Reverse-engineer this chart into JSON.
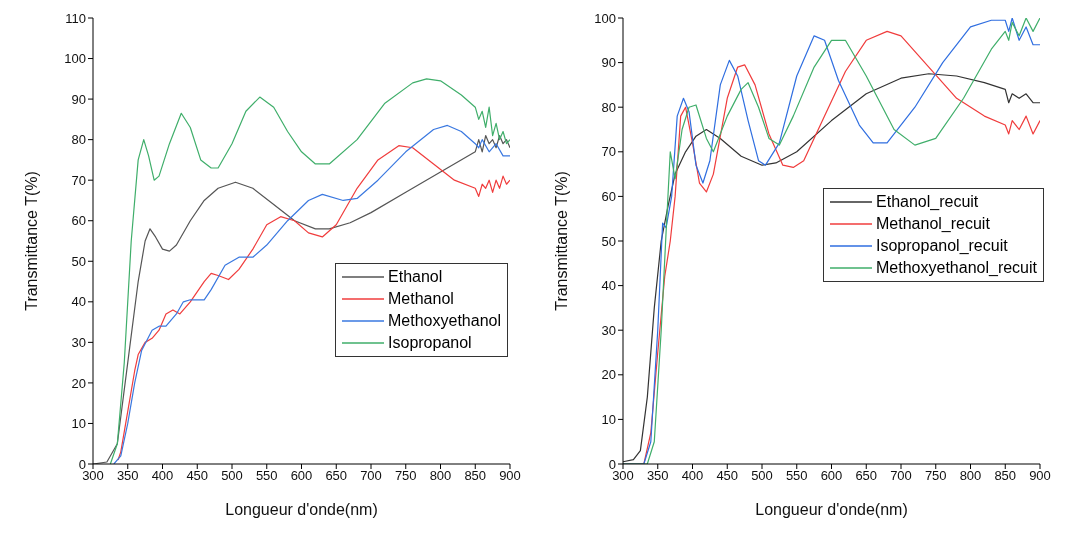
{
  "chart_data": [
    {
      "type": "line",
      "xlabel": "Longueur d'onde(nm)",
      "ylabel": "Transmittance T(%)",
      "xlim": [
        300,
        900
      ],
      "xticks": [
        300,
        350,
        400,
        450,
        500,
        550,
        600,
        650,
        700,
        750,
        800,
        850,
        900
      ],
      "ylim": [
        0,
        110
      ],
      "yticks": [
        0,
        10,
        20,
        30,
        40,
        50,
        60,
        70,
        80,
        90,
        100,
        110
      ],
      "grid": false,
      "legend": "bottom right",
      "marker": "none",
      "line_style": "solid",
      "series": [
        {
          "name": "Ethanol",
          "color": "#555555",
          "x": [
            300,
            320,
            335,
            350,
            365,
            375,
            382,
            390,
            400,
            410,
            420,
            440,
            460,
            480,
            505,
            530,
            560,
            590,
            620,
            640,
            670,
            700,
            750,
            800,
            850,
            855,
            860,
            865,
            870,
            875,
            880,
            885,
            890,
            895,
            900
          ],
          "values": [
            0,
            0.5,
            5,
            25,
            45,
            55,
            58,
            56,
            53,
            52.5,
            54,
            60,
            65,
            68,
            69.5,
            68,
            64,
            60,
            58,
            58,
            59.5,
            62,
            67,
            72,
            77,
            80,
            77,
            81,
            79,
            80,
            78,
            81,
            79,
            80,
            78
          ]
        },
        {
          "name": "Methanol",
          "color": "#f03c3c",
          "x": [
            336,
            340,
            350,
            360,
            365,
            375,
            385,
            395,
            405,
            415,
            425,
            440,
            460,
            470,
            480,
            495,
            510,
            530,
            550,
            570,
            590,
            610,
            630,
            650,
            680,
            710,
            740,
            760,
            790,
            820,
            850,
            855,
            860,
            865,
            870,
            875,
            880,
            885,
            890,
            895,
            900
          ],
          "values": [
            1,
            3,
            13,
            23,
            27,
            30,
            31,
            33,
            37,
            38,
            37,
            40,
            45,
            47,
            46.5,
            45.5,
            48,
            53,
            59,
            61,
            60,
            57,
            56,
            59,
            68,
            75,
            78.5,
            78,
            74,
            70,
            68,
            66,
            69,
            68,
            70,
            67,
            70,
            68,
            71,
            69,
            70
          ]
        },
        {
          "name": "Methoxyethanol",
          "color": "#3a78e0",
          "x": [
            330,
            340,
            350,
            360,
            370,
            385,
            395,
            405,
            420,
            430,
            440,
            460,
            470,
            490,
            510,
            530,
            550,
            580,
            610,
            630,
            660,
            680,
            710,
            750,
            790,
            810,
            830,
            850,
            855,
            860,
            870,
            880,
            890,
            900
          ],
          "values": [
            0,
            2,
            10,
            20,
            28,
            33,
            34,
            34,
            37,
            40,
            40.5,
            40.5,
            43,
            49,
            51,
            51,
            54,
            60,
            65,
            66.5,
            65,
            65.5,
            70,
            77,
            82.5,
            83.5,
            82,
            79,
            78,
            80,
            77,
            79,
            76,
            76
          ]
        },
        {
          "name": "Isopropanol",
          "color": "#3fae6a",
          "x": [
            325,
            335,
            345,
            355,
            365,
            373,
            380,
            388,
            395,
            410,
            427,
            440,
            455,
            470,
            480,
            500,
            520,
            540,
            560,
            580,
            600,
            620,
            640,
            680,
            720,
            760,
            780,
            800,
            830,
            850,
            855,
            860,
            865,
            870,
            875,
            880,
            885,
            890,
            895,
            900
          ],
          "values": [
            0,
            5,
            25,
            55,
            75,
            80,
            76,
            70,
            71,
            79,
            86.5,
            83,
            75,
            73,
            73,
            79,
            87,
            90.5,
            88,
            82,
            77,
            74,
            74,
            80,
            89,
            94,
            95,
            94.5,
            91,
            88,
            85,
            87,
            83,
            88,
            81,
            84,
            80,
            82,
            79,
            80
          ]
        }
      ]
    },
    {
      "type": "line",
      "xlabel": "Longueur d'onde(nm)",
      "ylabel": "Transmittance T(%)",
      "xlim": [
        300,
        900
      ],
      "xticks": [
        300,
        350,
        400,
        450,
        500,
        550,
        600,
        650,
        700,
        750,
        800,
        850,
        900
      ],
      "ylim": [
        0,
        100
      ],
      "yticks": [
        0,
        10,
        20,
        30,
        40,
        50,
        60,
        70,
        80,
        90,
        100
      ],
      "grid": false,
      "legend": "right",
      "marker": "none",
      "line_style": "solid",
      "series": [
        {
          "name": "Ethanol_recuit",
          "color": "#333333",
          "x": [
            300,
            315,
            325,
            335,
            345,
            355,
            365,
            375,
            390,
            405,
            420,
            440,
            470,
            500,
            520,
            550,
            600,
            650,
            700,
            740,
            780,
            820,
            850,
            855,
            860,
            870,
            880,
            890,
            900
          ],
          "values": [
            0.5,
            1,
            3,
            15,
            35,
            50,
            58,
            65,
            70,
            73.5,
            75,
            73,
            69,
            67,
            67.5,
            70,
            77,
            83,
            86.5,
            87.5,
            87,
            85.5,
            84,
            81,
            83,
            82,
            83,
            81,
            81
          ]
        },
        {
          "name": "Methanol_recuit",
          "color": "#f03c3c",
          "x": [
            300,
            330,
            340,
            350,
            360,
            368,
            375,
            383,
            390,
            400,
            410,
            420,
            430,
            450,
            465,
            475,
            490,
            510,
            530,
            545,
            560,
            590,
            620,
            650,
            680,
            700,
            740,
            780,
            820,
            850,
            855,
            860,
            870,
            880,
            890,
            900
          ],
          "values": [
            0,
            0,
            7,
            25,
            42,
            50,
            60,
            78,
            80,
            72,
            63,
            61,
            65,
            82,
            89,
            89.5,
            85,
            74,
            67,
            66.5,
            68,
            78,
            88,
            95,
            97,
            96,
            89,
            82,
            78,
            76,
            74,
            77,
            75,
            78,
            74,
            77
          ]
        },
        {
          "name": "Isopropanol_recuit",
          "color": "#2f6ee0",
          "x": [
            300,
            330,
            340,
            350,
            357,
            362,
            370,
            378,
            387,
            395,
            405,
            415,
            425,
            440,
            453,
            465,
            480,
            495,
            505,
            525,
            550,
            575,
            590,
            610,
            640,
            660,
            680,
            720,
            760,
            800,
            830,
            850,
            855,
            860,
            870,
            880,
            890,
            900
          ],
          "values": [
            0,
            0,
            5,
            30,
            54,
            53,
            60,
            78,
            82,
            79,
            67,
            63,
            68,
            85,
            90.5,
            87,
            77,
            68,
            67,
            72,
            87,
            96,
            95,
            86,
            76,
            72,
            72,
            80,
            90,
            98,
            99.5,
            99.5,
            97,
            100,
            95,
            98,
            94,
            94
          ]
        },
        {
          "name": "Methoxyethanol_recuit",
          "color": "#3fae6a",
          "x": [
            300,
            335,
            345,
            355,
            362,
            368,
            375,
            385,
            395,
            405,
            420,
            430,
            450,
            470,
            480,
            495,
            510,
            525,
            545,
            575,
            600,
            620,
            650,
            690,
            720,
            750,
            790,
            830,
            850,
            855,
            860,
            870,
            880,
            890,
            900
          ],
          "values": [
            0,
            0,
            5,
            30,
            52,
            70,
            64,
            75,
            80,
            80.5,
            73,
            70,
            78,
            84,
            85.5,
            80,
            73,
            71.5,
            78,
            89,
            95,
            95,
            87,
            75,
            71.5,
            73,
            82,
            93,
            97,
            95,
            99,
            96,
            100,
            97,
            100
          ]
        }
      ]
    }
  ]
}
